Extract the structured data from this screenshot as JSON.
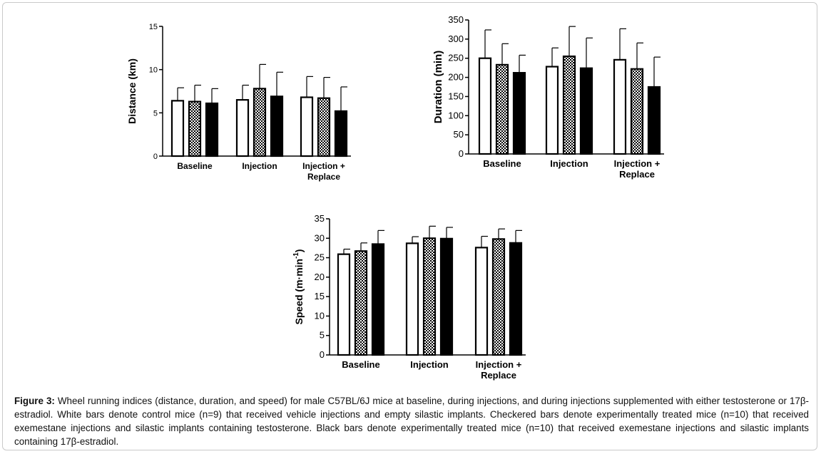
{
  "chart_data": [
    {
      "type": "bar",
      "categories": [
        "Baseline",
        "Injection",
        "Injection +\nReplace"
      ],
      "ylabel": "Distance (km)",
      "ylim": [
        0,
        15
      ],
      "yticks": [
        0,
        5,
        10,
        15
      ],
      "series": [
        {
          "style": "open",
          "values": [
            6.4,
            6.5,
            6.8
          ],
          "errors": [
            1.5,
            1.7,
            2.4
          ]
        },
        {
          "style": "checkered",
          "values": [
            6.3,
            7.8,
            6.7
          ],
          "errors": [
            1.9,
            2.8,
            2.4
          ]
        },
        {
          "style": "solid",
          "values": [
            6.1,
            6.9,
            5.2
          ],
          "errors": [
            1.7,
            2.8,
            2.8
          ]
        }
      ]
    },
    {
      "type": "bar",
      "categories": [
        "Baseline",
        "Injection",
        "Injection +\nReplace"
      ],
      "ylabel": "Duration (min)",
      "ylim": [
        0,
        350
      ],
      "yticks": [
        0,
        50,
        100,
        150,
        200,
        250,
        300,
        350
      ],
      "series": [
        {
          "style": "open",
          "values": [
            250,
            228,
            246
          ],
          "errors": [
            74,
            49,
            81
          ]
        },
        {
          "style": "checkered",
          "values": [
            233,
            255,
            222
          ],
          "errors": [
            55,
            78,
            68
          ]
        },
        {
          "style": "solid",
          "values": [
            212,
            224,
            175
          ],
          "errors": [
            46,
            79,
            78
          ]
        }
      ]
    },
    {
      "type": "bar",
      "categories": [
        "Baseline",
        "Injection",
        "Injection +\nReplace"
      ],
      "ylabel": "Speed (m·min",
      "ylabel_superscript": "-1",
      "ylabel_close": ")",
      "ylim": [
        0,
        35
      ],
      "yticks": [
        0,
        5,
        10,
        15,
        20,
        25,
        30,
        35
      ],
      "series": [
        {
          "style": "open",
          "values": [
            25.9,
            28.7,
            27.6
          ],
          "errors": [
            1.3,
            1.7,
            2.9
          ]
        },
        {
          "style": "checkered",
          "values": [
            26.7,
            30.0,
            29.8
          ],
          "errors": [
            2.1,
            3.1,
            2.6
          ]
        },
        {
          "style": "solid",
          "values": [
            28.5,
            29.9,
            28.8
          ],
          "errors": [
            3.5,
            2.9,
            3.2
          ]
        }
      ]
    }
  ],
  "caption": {
    "label": "Figure 3:",
    "text": " Wheel running indices (distance, duration, and speed) for male C57BL/6J mice at baseline, during injections, and during injections supplemented with either testosterone or 17β-estradiol. White bars denote control mice (n=9) that received vehicle injections and empty silastic implants. Checkered bars denote experimentally treated mice (n=10) that received exemestane injections and silastic implants containing testosterone. Black bars denote experimentally treated mice (n=10) that received exemestane injections and silastic implants containing 17β-estradiol."
  }
}
